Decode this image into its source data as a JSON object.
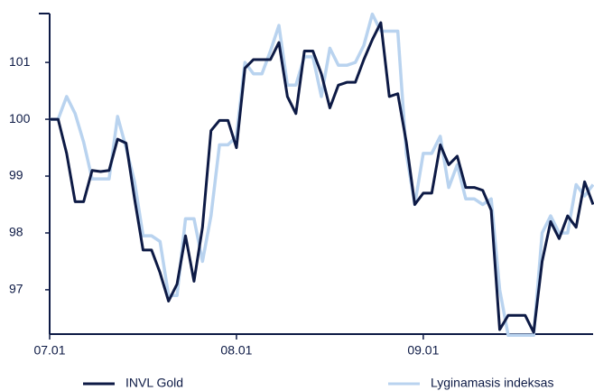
{
  "chart_data": {
    "type": "line",
    "x": [
      0,
      1,
      2,
      3,
      4,
      5,
      6,
      7,
      8,
      9,
      10,
      11,
      12,
      13,
      14,
      15,
      16,
      17,
      18,
      19,
      20,
      21,
      22,
      23,
      24,
      25,
      26,
      27,
      28,
      29,
      30,
      31,
      32,
      33,
      34,
      35,
      36,
      37,
      38,
      39,
      40,
      41,
      42,
      43,
      44,
      45,
      46,
      47,
      48,
      49,
      50,
      51,
      52,
      53,
      54,
      55,
      56,
      57,
      58,
      59,
      60,
      61,
      62,
      63,
      64
    ],
    "xlim": [
      0,
      64
    ],
    "xticks": [
      {
        "value": 0,
        "label": "07.01"
      },
      {
        "value": 22,
        "label": "08.01"
      },
      {
        "value": 44,
        "label": "09.01"
      }
    ],
    "ylim": [
      96.22,
      101.86
    ],
    "yticks": [
      97,
      98,
      99,
      100,
      101
    ],
    "legend": "bottom",
    "series": [
      {
        "name": "INVL Gold",
        "color": "#0d1a45",
        "values": [
          100,
          100,
          99.4,
          98.55,
          98.55,
          99.1,
          99.08,
          99.1,
          99.65,
          99.58,
          98.6,
          97.7,
          97.7,
          97.3,
          96.8,
          97.1,
          97.95,
          97.15,
          98.1,
          99.8,
          99.98,
          99.98,
          99.5,
          100.9,
          101.05,
          101.05,
          101.05,
          101.35,
          100.4,
          100.1,
          101.2,
          101.2,
          100.8,
          100.2,
          100.6,
          100.65,
          100.65,
          101.05,
          101.4,
          101.7,
          100.4,
          100.45,
          99.6,
          98.5,
          98.7,
          98.7,
          99.55,
          99.2,
          99.35,
          98.8,
          98.8,
          98.75,
          98.4,
          96.3,
          96.55,
          96.55,
          96.55,
          96.25,
          97.5,
          98.2,
          97.9,
          98.3,
          98.1,
          98.9,
          98.5
        ]
      },
      {
        "name": "Lyginamasis indeksas",
        "color": "#b9d3ef",
        "values": [
          100,
          100,
          100.4,
          100.1,
          99.6,
          98.95,
          98.95,
          98.95,
          100.05,
          99.5,
          98.9,
          97.95,
          97.95,
          97.85,
          96.9,
          96.9,
          98.25,
          98.25,
          97.5,
          98.3,
          99.55,
          99.55,
          99.7,
          101.0,
          100.8,
          100.8,
          101.2,
          101.65,
          100.6,
          100.6,
          101.1,
          101.1,
          100.4,
          101.25,
          100.95,
          100.95,
          101.0,
          101.3,
          101.85,
          101.55,
          101.55,
          101.55,
          99.4,
          98.5,
          99.4,
          99.4,
          99.7,
          98.8,
          99.2,
          98.6,
          98.6,
          98.5,
          98.6,
          97.0,
          96.2,
          96.2,
          96.2,
          96.2,
          98.0,
          98.3,
          98.0,
          98.0,
          98.85,
          98.65,
          98.85
        ]
      }
    ]
  }
}
